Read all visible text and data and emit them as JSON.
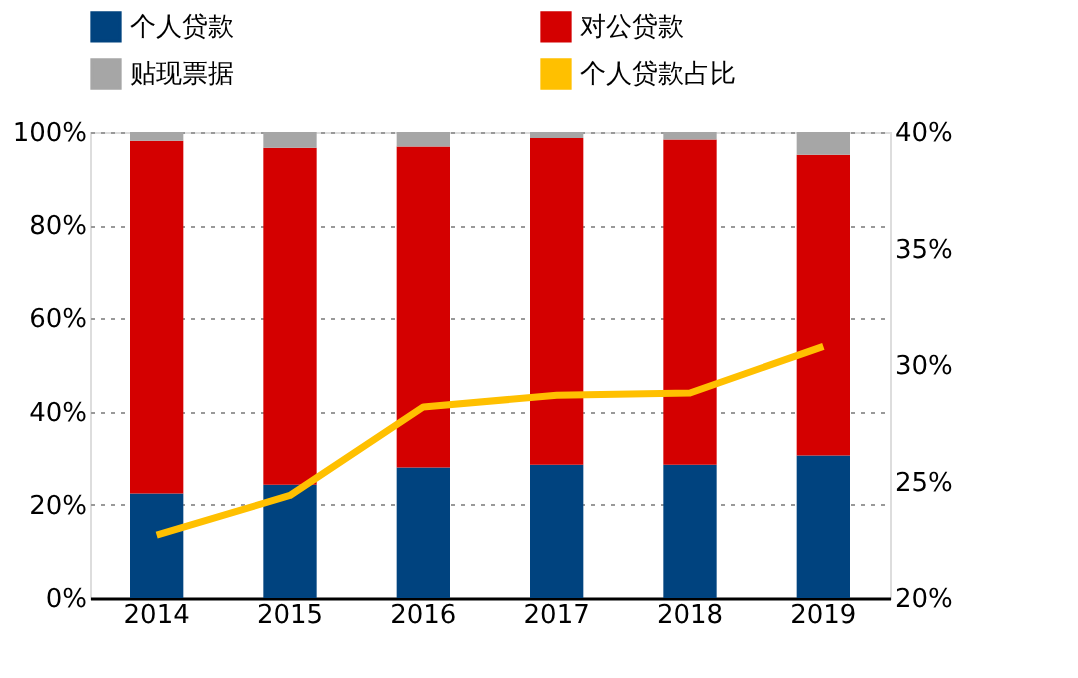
{
  "chart_data": {
    "type": "bar",
    "stacked": true,
    "categories": [
      "2014",
      "2015",
      "2016",
      "2017",
      "2018",
      "2019"
    ],
    "series": [
      {
        "name": "个人贷款",
        "color": "#00437f",
        "values": [
          22.4,
          24.3,
          28.0,
          28.6,
          28.6,
          30.6
        ]
      },
      {
        "name": "对公贷款",
        "color": "#d40000",
        "values": [
          75.7,
          72.3,
          68.9,
          70.1,
          69.8,
          64.5
        ]
      },
      {
        "name": "贴现票据",
        "color": "#a6a6a6",
        "values": [
          1.9,
          3.4,
          3.1,
          1.3,
          1.6,
          4.9
        ]
      },
      {
        "name": "个人贷款占比",
        "type": "line",
        "axis": "y2",
        "color": "#ffc000",
        "values": [
          22.7,
          24.4,
          28.2,
          28.7,
          28.8,
          30.8
        ]
      }
    ],
    "ylim": [
      0,
      100
    ],
    "yticks": [
      {
        "value": 0,
        "label": "0%"
      },
      {
        "value": 20,
        "label": "20%"
      },
      {
        "value": 40,
        "label": "40%"
      },
      {
        "value": 60,
        "label": "60%"
      },
      {
        "value": 80,
        "label": "80%"
      },
      {
        "value": 100,
        "label": "100%"
      }
    ],
    "y2lim": [
      20,
      40
    ],
    "y2ticks": [
      {
        "value": 20,
        "label": "20%"
      },
      {
        "value": 25,
        "label": "25%"
      },
      {
        "value": 30,
        "label": "30%"
      },
      {
        "value": 35,
        "label": "35%"
      },
      {
        "value": 40,
        "label": "40%"
      }
    ],
    "grid": "y",
    "legend": "top"
  }
}
